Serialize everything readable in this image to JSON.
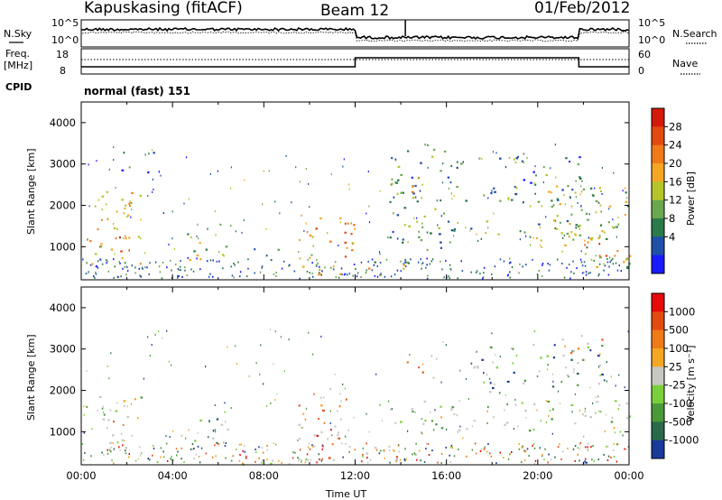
{
  "header": {
    "station": "Kapuskasing (fitACF)",
    "beam": "Beam 12",
    "date": "01/Feb/2012"
  },
  "top_panels": {
    "nsky_label": "N.Sky",
    "nsky_ticks": [
      "10^5",
      "10^0"
    ],
    "nsearch_label": "N.Search",
    "nsearch_ticks": [
      "10^5",
      "10^0"
    ],
    "freq_label_1": "Freq.",
    "freq_label_2": "[MHz]",
    "freq_ticks": [
      "18",
      "8"
    ],
    "nave_label": "Nave",
    "nave_ticks": [
      "60",
      "0"
    ],
    "cpid_label": "CPID",
    "cpid_value": "normal (fast) 151"
  },
  "chart_data": [
    {
      "type": "heatmap",
      "name": "power-panel",
      "ylabel": "Slant Range [km]",
      "yticks": [
        "4000",
        "3000",
        "2000",
        "1000"
      ],
      "ylim": [
        200,
        4500
      ],
      "xlim": [
        0,
        24
      ],
      "colorbar": {
        "label": "Power [dB]",
        "ticks": [
          "28",
          "24",
          "20",
          "16",
          "12",
          "8",
          "4"
        ],
        "colors": [
          "#1a1aff",
          "#1f4fa8",
          "#2a7a4a",
          "#6aa84f",
          "#b5c42a",
          "#f5a623",
          "#f07a18",
          "#e34a10",
          "#d41a0a"
        ]
      },
      "regions": [
        {
          "t0": 0.2,
          "t1": 2.6,
          "r0": 600,
          "r1": 2500,
          "level": 0.55
        },
        {
          "t0": 1.0,
          "t1": 2.2,
          "r0": 900,
          "r1": 1800,
          "level": 0.8
        },
        {
          "t0": 1.5,
          "t1": 3.5,
          "r0": 2800,
          "r1": 3300,
          "level": 0.2
        },
        {
          "t0": 4.5,
          "t1": 6.6,
          "r0": 700,
          "r1": 1600,
          "level": 0.45
        },
        {
          "t0": 7.5,
          "t1": 9.0,
          "r0": 700,
          "r1": 1000,
          "level": 0.35
        },
        {
          "t0": 9.5,
          "t1": 12.0,
          "r0": 300,
          "r1": 1800,
          "level": 0.6
        },
        {
          "t0": 11.0,
          "t1": 12.0,
          "r0": 900,
          "r1": 1700,
          "level": 0.85
        },
        {
          "t0": 12.0,
          "t1": 14.5,
          "r0": 300,
          "r1": 700,
          "level": 0.5
        },
        {
          "t0": 13.5,
          "t1": 16.5,
          "r0": 900,
          "r1": 3500,
          "level": 0.3
        },
        {
          "t0": 14.2,
          "t1": 15.4,
          "r0": 2200,
          "r1": 2700,
          "level": 0.65
        },
        {
          "t0": 14.0,
          "t1": 24.0,
          "r0": 1150,
          "r1": 1650,
          "level": 0.35
        },
        {
          "t0": 16.0,
          "t1": 22.0,
          "r0": 2000,
          "r1": 3200,
          "level": 0.3
        },
        {
          "t0": 20.0,
          "t1": 24.0,
          "r0": 500,
          "r1": 2500,
          "level": 0.45
        },
        {
          "t0": 21.5,
          "t1": 23.5,
          "r0": 800,
          "r1": 1500,
          "level": 0.75
        }
      ]
    },
    {
      "type": "heatmap",
      "name": "velocity-panel",
      "ylabel": "Slant Range [km]",
      "yticks": [
        "4000",
        "3000",
        "2000",
        "1000"
      ],
      "ylim": [
        200,
        4500
      ],
      "xlim": [
        0,
        24
      ],
      "xticks": [
        "00:00",
        "04:00",
        "08:00",
        "12:00",
        "16:00",
        "20:00",
        "00:00"
      ],
      "xlabel": "Time UT",
      "colorbar": {
        "label": "Velocity [m s⁻¹]",
        "ticks": [
          "1000",
          "500",
          "100",
          "25",
          "-25",
          "-100",
          "-500",
          "-1000"
        ],
        "colors": [
          "#1a3a9a",
          "#2a6a4a",
          "#4a9a3a",
          "#7ad03a",
          "#c8c8c0",
          "#f5a623",
          "#f07a18",
          "#e34a10",
          "#e60a0a"
        ]
      },
      "regions": [
        {
          "t0": 0.2,
          "t1": 2.8,
          "r0": 1300,
          "r1": 1900,
          "level": 0.45
        },
        {
          "t0": 1.0,
          "t1": 2.5,
          "r0": 900,
          "r1": 1800,
          "level": 0.65
        },
        {
          "t0": 0.5,
          "t1": 2.0,
          "r0": 600,
          "r1": 900,
          "level": 0.5
        },
        {
          "t0": 4.5,
          "t1": 6.5,
          "r0": 700,
          "r1": 1500,
          "level": 0.2
        },
        {
          "t0": 9.5,
          "t1": 12.0,
          "r0": 300,
          "r1": 2200,
          "level": 0.7
        },
        {
          "t0": 12.0,
          "t1": 14.0,
          "r0": 300,
          "r1": 700,
          "level": 0.65
        },
        {
          "t0": 13.0,
          "t1": 24.0,
          "r0": 1000,
          "r1": 1800,
          "level": 0.45
        },
        {
          "t0": 14.2,
          "t1": 15.6,
          "r0": 2200,
          "r1": 2900,
          "level": 0.7
        },
        {
          "t0": 17.0,
          "t1": 23.0,
          "r0": 1900,
          "r1": 3200,
          "level": 0.25
        },
        {
          "t0": 21.0,
          "t1": 23.0,
          "r0": 2800,
          "r1": 3300,
          "level": 0.75
        },
        {
          "t0": 3.0,
          "t1": 11.0,
          "r0": 200,
          "r1": 350,
          "level": 0.55
        }
      ]
    }
  ],
  "colors": {
    "ground_scatter": "#c8c8c0",
    "axis": "#000000"
  }
}
